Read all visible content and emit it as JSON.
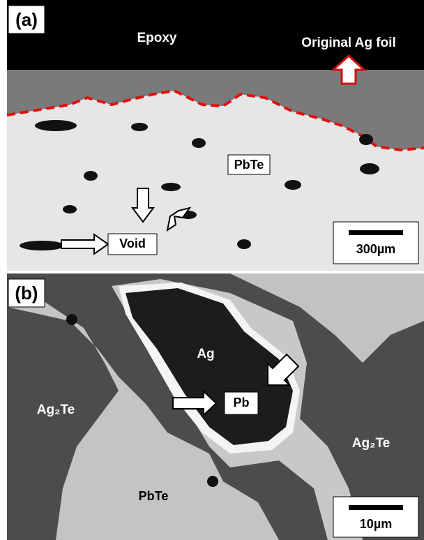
{
  "panels": [
    {
      "label": "(a)",
      "annotations": [
        "Epoxy",
        "Original Ag foil",
        "PbTe",
        "Void"
      ],
      "scale_bar": "300µm"
    },
    {
      "label": "(b)",
      "annotations": [
        "Ag",
        "Pb",
        "Ag₂Te",
        "Ag₂Te",
        "PbTe"
      ],
      "scale_bar": "10µm"
    }
  ]
}
